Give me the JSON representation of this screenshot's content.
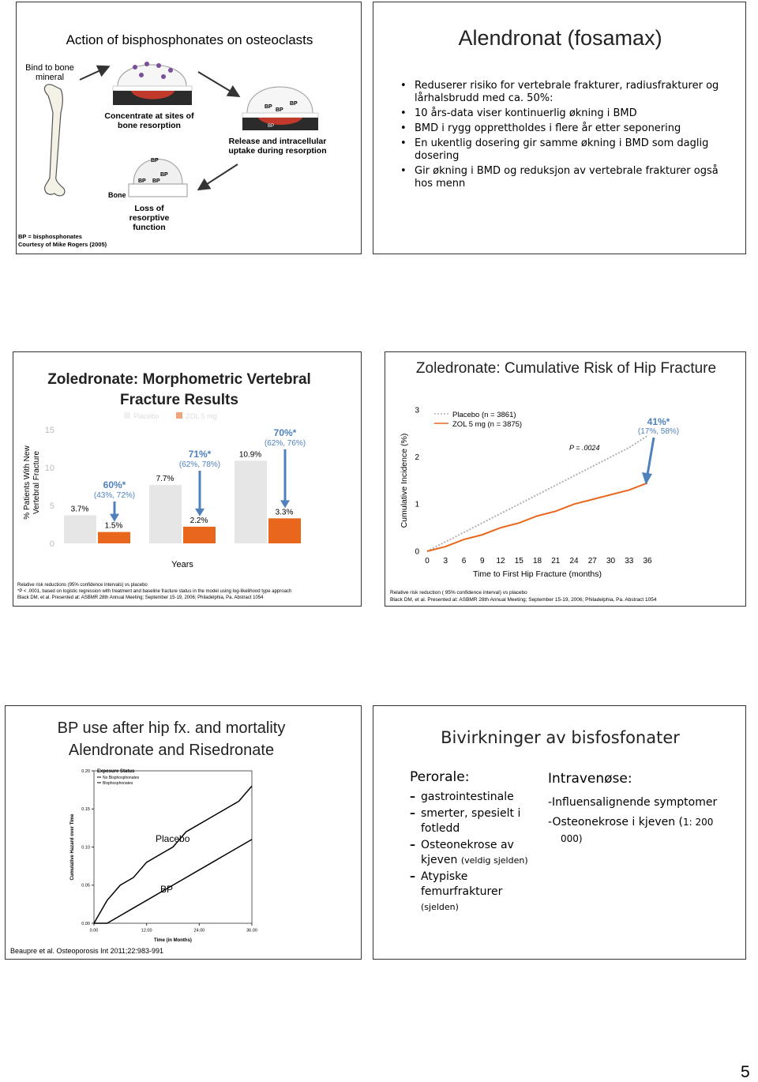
{
  "page_number": "5",
  "slide1": {
    "title": "Action of bisphosphonates on osteoclasts",
    "step_bind": "Bind to bone mineral",
    "step_concentrate": "Concentrate at sites of bone resorption",
    "step_release": "Release and intracellular uptake during resorption",
    "step_loss": "Loss of resorptive function",
    "bone_label": "Bone",
    "bp_label": "BP",
    "footnotes": [
      "BP = bisphosphonates",
      "Courtesy of Mike Rogers (2005)"
    ]
  },
  "slide2": {
    "title": "Alendronat (fosamax)",
    "bullets": [
      "Reduserer risiko for  vertebrale frakturer, radiusfrakturer og lårhalsbrudd  med ca. 50%:",
      "10 års-data viser kontinuerlig økning i BMD",
      "BMD i rygg opprettholdes i flere år etter seponering",
      "En ukentlig dosering  gir samme økning i BMD som daglig dosering",
      "Gir økning i BMD og reduksjon av vertebrale frakturer også hos menn"
    ]
  },
  "slide3": {
    "chart": {
      "type": "bar",
      "title": "Zoledronate: Morphometric Vertebral Fracture Results",
      "y_label_lines": [
        "% Patients With New",
        "Vertebral Fracture"
      ],
      "x_label": "Years",
      "categories": [
        null,
        null,
        null
      ],
      "series": [
        {
          "name": "Placebo",
          "color": "#e6e6e6",
          "values": [
            3.7,
            7.7,
            10.9
          ],
          "value_labels": [
            "3.7%",
            "7.7%",
            "10.9%"
          ]
        },
        {
          "name": "ZOL 5 mg",
          "color": "#e8671c",
          "values": [
            1.5,
            2.2,
            3.3
          ],
          "value_labels": [
            "1.5%",
            "2.2%",
            "3.3%"
          ]
        }
      ],
      "ylim": [
        0,
        15
      ],
      "yticks": [
        0,
        5,
        10,
        15
      ],
      "annotations": [
        {
          "reduction": "60%*",
          "interval": "(43%, 72%)"
        },
        {
          "reduction": "71%*",
          "interval": "(62%, 78%)"
        },
        {
          "reduction": "70%*",
          "interval": "(62%, 76%)"
        }
      ],
      "annotation_color": "#4f81bd",
      "footnotes": [
        "Relative risk reductions (95% confidence intervals) vs placebo",
        "*P < .0001, based on logistic regression with treatment and baseline fracture status in the model using log-likelihood type approach",
        "Black DM, et al. Presented at: ASBMR 28th Annual Meeting; September 15-19, 2006; Philadelphia, Pa. Abstract 1054"
      ]
    }
  },
  "slide4": {
    "chart": {
      "type": "line",
      "title": "Zoledronate: Cumulative Risk of Hip Fracture",
      "y_label": "Cumulative Incidence (%)",
      "x_label": "Time to First Hip Fracture (months)",
      "x": [
        0,
        3,
        6,
        9,
        12,
        15,
        18,
        21,
        24,
        27,
        30,
        33,
        36
      ],
      "series": [
        {
          "name": "Placebo (n = 3861)",
          "color": "#b0b0b0",
          "dashed": true,
          "values": [
            0,
            0.2,
            0.4,
            0.6,
            0.8,
            1.0,
            1.2,
            1.4,
            1.6,
            1.8,
            2.0,
            2.2,
            2.45
          ]
        },
        {
          "name": "ZOL 5 mg (n = 3875)",
          "color": "#e8671c",
          "dashed": false,
          "values": [
            0,
            0.1,
            0.25,
            0.35,
            0.5,
            0.6,
            0.75,
            0.85,
            1.0,
            1.1,
            1.2,
            1.3,
            1.45
          ]
        }
      ],
      "xlim": [
        0,
        36
      ],
      "xticks": [
        0,
        3,
        6,
        9,
        12,
        15,
        18,
        21,
        24,
        27,
        30,
        33,
        36
      ],
      "ylim": [
        0,
        3
      ],
      "yticks": [
        0,
        1,
        2,
        3
      ],
      "p_value": "P = .0024",
      "reduction": "41%*",
      "interval": "(17%, 58%)",
      "annotation_color": "#4f81bd",
      "footnotes": [
        "Relative risk reduction ( 95% confidence interval) vs placebo",
        "Black DM, et al. Presented at: ASBMR 28th Annual Meeting; September 15-19, 2006; Philadelphia, Pa. Abstract 1054"
      ]
    }
  },
  "slide5": {
    "title_lines": [
      "BP use after hip fx. and mortality",
      "Alendronate and Risedronate"
    ],
    "chart": {
      "type": "line",
      "y_label": "Cumulative Hazard over Time",
      "x_label": "Time (in Months)",
      "legend_title": "Exposure Status",
      "x": [
        0,
        3,
        6,
        9,
        12,
        15,
        18,
        21,
        24,
        27,
        30,
        33,
        36
      ],
      "series": [
        {
          "name": "No Bisphosphonates",
          "color": "#000000",
          "values": [
            0,
            0.03,
            0.05,
            0.06,
            0.08,
            0.09,
            0.1,
            0.12,
            0.13,
            0.14,
            0.15,
            0.16,
            0.18
          ]
        },
        {
          "name": "Bisphosphonates",
          "color": "#000000",
          "values": [
            0,
            0,
            0.01,
            0.02,
            0.03,
            0.04,
            0.05,
            0.06,
            0.07,
            0.08,
            0.09,
            0.1,
            0.11
          ]
        }
      ],
      "xlim": [
        0,
        36
      ],
      "xticks": [
        {
          "value": 0,
          "label": "0.00"
        },
        {
          "value": 12,
          "label": "12.00"
        },
        {
          "value": 24,
          "label": "24.00"
        },
        {
          "value": 36,
          "label": "36.00"
        }
      ],
      "ylim": [
        0,
        0.2
      ],
      "yticks": [
        {
          "value": 0,
          "label": "0.00"
        },
        {
          "value": 0.05,
          "label": "0.05"
        },
        {
          "value": 0.1,
          "label": "0.10"
        },
        {
          "value": 0.15,
          "label": "0.15"
        },
        {
          "value": 0.2,
          "label": "0.20"
        }
      ],
      "label_upper": "Placebo",
      "label_lower": "BP"
    },
    "citation": "Beaupre et al. Osteoporosis Int 2011;22:983-991"
  },
  "slide6": {
    "title": "Bivirkninger av bisfosfonater",
    "left_heading": "Perorale:",
    "left_items": [
      {
        "text": "gastrointestinale"
      },
      {
        "text": "smerter, spesielt i fotledd"
      },
      {
        "text": "Osteonekrose av kjeven",
        "note": "(veldig sjelden)"
      },
      {
        "text": "Atypiske femurfrakturer",
        "note": "(sjelden)"
      }
    ],
    "right_heading": "Intravenøse:",
    "right_items": [
      {
        "text": "-Influensalignende symptomer"
      },
      {
        "text": "-Osteonekrose i kjeven (",
        "note": "1: 200 000)"
      }
    ]
  }
}
